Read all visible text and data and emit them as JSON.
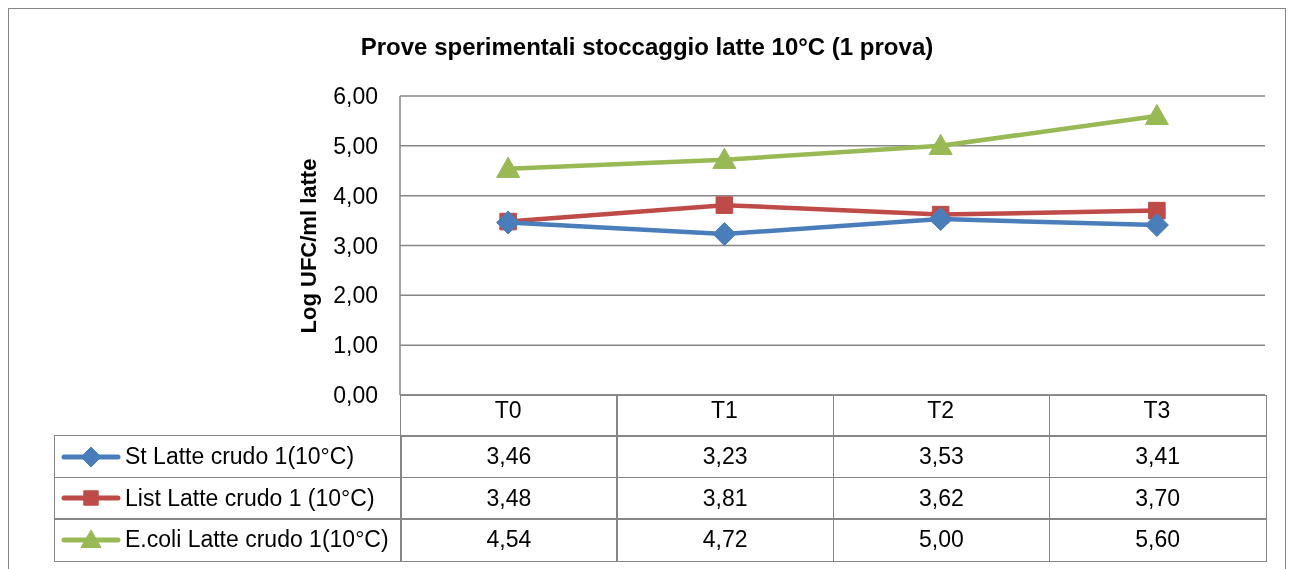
{
  "chart_data": {
    "type": "line",
    "title": "Prove sperimentali stoccaggio latte 10°C (1 prova)",
    "ylabel": "Log UFC/ml latte",
    "categories": [
      "T0",
      "T1",
      "T2",
      "T3"
    ],
    "series": [
      {
        "name": "St Latte crudo 1(10°C)",
        "color": "#4a7ebb",
        "marker": "diamond",
        "values": [
          3.46,
          3.23,
          3.53,
          3.41
        ],
        "value_labels": [
          "3,46",
          "3,23",
          "3,53",
          "3,41"
        ]
      },
      {
        "name": "List Latte crudo 1 (10°C)",
        "color": "#be4b48",
        "marker": "square",
        "values": [
          3.48,
          3.81,
          3.62,
          3.7
        ],
        "value_labels": [
          "3,48",
          "3,81",
          "3,62",
          "3,70"
        ]
      },
      {
        "name": "E.coli Latte crudo 1(10°C)",
        "color": "#98b954",
        "marker": "triangle",
        "values": [
          4.54,
          4.72,
          5.0,
          5.6
        ],
        "value_labels": [
          "4,54",
          "4,72",
          "5,00",
          "5,60"
        ]
      }
    ],
    "ylim": [
      0,
      6
    ],
    "yticks": [
      {
        "value": 0,
        "label": "0,00"
      },
      {
        "value": 1,
        "label": "1,00"
      },
      {
        "value": 2,
        "label": "2,00"
      },
      {
        "value": 3,
        "label": "3,00"
      },
      {
        "value": 4,
        "label": "4,00"
      },
      {
        "value": 5,
        "label": "5,00"
      },
      {
        "value": 6,
        "label": "6,00"
      }
    ],
    "grid": "y",
    "legend": "bottom",
    "line_style": "solid"
  }
}
